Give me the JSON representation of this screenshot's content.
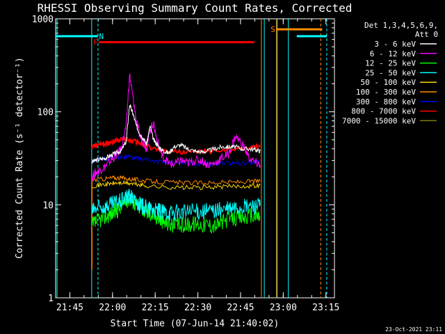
{
  "chart_data": {
    "type": "line",
    "title": "RHESSI Observing Summary Count Rates, Corrected",
    "xlabel": "Start Time (07-Jun-14 21:40:02)",
    "ylabel": "Corrected Count Rate (s⁻¹ detector⁻¹)",
    "yscale": "log",
    "ylim": [
      1,
      1000
    ],
    "xlim_minutes": [
      21.6667,
      23.3
    ],
    "xlim_unit": "hours",
    "x_ticks": [
      {
        "h": 21.75,
        "label": "21:45"
      },
      {
        "h": 22.0,
        "label": "22:00"
      },
      {
        "h": 22.25,
        "label": "22:15"
      },
      {
        "h": 22.5,
        "label": "22:30"
      },
      {
        "h": 22.75,
        "label": "22:45"
      },
      {
        "h": 23.0,
        "label": "23:00"
      },
      {
        "h": 23.25,
        "label": "23:15"
      }
    ],
    "y_ticks": [
      {
        "v": 1,
        "label": "1"
      },
      {
        "v": 10,
        "label": "10"
      },
      {
        "v": 100,
        "label": "100"
      },
      {
        "v": 1000,
        "label": "1000"
      }
    ],
    "legend_header": [
      "Det 1,3,4,5,6,9,",
      "Att 0"
    ],
    "series": [
      {
        "name": "3 - 6 keV",
        "color": "#ffffff",
        "x": [
          21.88,
          21.9,
          21.93,
          21.96,
          21.99,
          22.02,
          22.05,
          22.08,
          22.1,
          22.12,
          22.14,
          22.16,
          22.18,
          22.2,
          22.22,
          22.24,
          22.26,
          22.28,
          22.3,
          22.33,
          22.36,
          22.4,
          22.44,
          22.48,
          22.52,
          22.56,
          22.6,
          22.64,
          22.68,
          22.72,
          22.76,
          22.8,
          22.84,
          22.865
        ],
        "y": [
          29,
          30,
          31,
          32,
          34,
          36,
          38,
          48,
          120,
          95,
          70,
          58,
          52,
          45,
          70,
          50,
          45,
          40,
          38,
          36,
          42,
          44,
          40,
          38,
          37,
          38,
          40,
          42,
          42,
          42,
          40,
          40,
          39,
          38
        ]
      },
      {
        "name": "6 - 12 keV",
        "color": "#ff00ff",
        "x": [
          21.88,
          21.9,
          21.93,
          21.96,
          21.99,
          22.02,
          22.05,
          22.08,
          22.1,
          22.12,
          22.14,
          22.16,
          22.18,
          22.2,
          22.22,
          22.24,
          22.26,
          22.28,
          22.3,
          22.33,
          22.36,
          22.4,
          22.44,
          22.48,
          22.52,
          22.56,
          22.6,
          22.64,
          22.68,
          22.72,
          22.76,
          22.8,
          22.84,
          22.865
        ],
        "y": [
          20,
          22,
          24,
          26,
          30,
          34,
          40,
          70,
          250,
          140,
          80,
          55,
          48,
          40,
          65,
          75,
          50,
          38,
          32,
          28,
          27,
          30,
          28,
          30,
          30,
          27,
          28,
          32,
          35,
          55,
          45,
          32,
          28,
          27
        ]
      },
      {
        "name": "12 - 25 keV",
        "color": "#00ff00",
        "x": [
          21.88,
          21.9,
          21.93,
          21.96,
          21.99,
          22.02,
          22.05,
          22.08,
          22.1,
          22.12,
          22.14,
          22.16,
          22.18,
          22.2,
          22.22,
          22.24,
          22.26,
          22.28,
          22.3,
          22.33,
          22.36,
          22.4,
          22.44,
          22.48,
          22.52,
          22.56,
          22.6,
          22.64,
          22.68,
          22.72,
          22.76,
          22.8,
          22.84,
          22.865
        ],
        "y": [
          6,
          6.5,
          7,
          7.5,
          8,
          8.5,
          9.5,
          11,
          12,
          11,
          10,
          9.5,
          9,
          8.5,
          8,
          7.8,
          7.5,
          7,
          6.5,
          6.3,
          6,
          6,
          6.2,
          6.3,
          6.2,
          6.1,
          6,
          6.5,
          7,
          7.2,
          7.3,
          7.5,
          7.6,
          7.5
        ]
      },
      {
        "name": "25 - 50 keV",
        "color": "#00ffff",
        "x": [
          21.88,
          21.9,
          21.93,
          21.96,
          21.99,
          22.02,
          22.05,
          22.08,
          22.1,
          22.12,
          22.14,
          22.16,
          22.18,
          22.2,
          22.22,
          22.24,
          22.26,
          22.28,
          22.3,
          22.33,
          22.36,
          22.4,
          22.44,
          22.48,
          22.52,
          22.56,
          22.6,
          22.64,
          22.68,
          22.72,
          22.76,
          22.8,
          22.84,
          22.865
        ],
        "y": [
          8.5,
          9,
          9.3,
          9.6,
          10,
          10.5,
          11,
          12,
          12.5,
          11.5,
          10.5,
          10,
          9.6,
          9.3,
          9,
          8.8,
          8.6,
          8.5,
          8.4,
          8.3,
          8.3,
          8.3,
          8.4,
          8.5,
          8.5,
          8.6,
          8.7,
          8.9,
          9,
          9.2,
          9.4,
          9.6,
          9.8,
          9.9
        ]
      },
      {
        "name": "50 - 100 keV",
        "color": "#ffd700",
        "x": [
          21.88,
          21.95,
          22.0,
          22.05,
          22.1,
          22.15,
          22.2,
          22.3,
          22.4,
          22.5,
          22.6,
          22.7,
          22.8,
          22.865
        ],
        "y": [
          16,
          16.5,
          17,
          17.2,
          17,
          16.5,
          16,
          15.5,
          15.3,
          15.3,
          15.5,
          15.8,
          16,
          16.2
        ]
      },
      {
        "name": "100 - 300 keV",
        "color": "#ff8c00",
        "x": [
          21.88,
          21.95,
          22.0,
          22.05,
          22.1,
          22.15,
          22.2,
          22.3,
          22.4,
          22.5,
          22.6,
          22.7,
          22.8,
          22.865
        ],
        "y": [
          18.5,
          19,
          19.5,
          19.5,
          19,
          18.5,
          18,
          17.5,
          17.3,
          17.2,
          17.3,
          17.5,
          17.8,
          18
        ]
      },
      {
        "name": "300 - 800 keV",
        "color": "#0000ff",
        "x": [
          21.88,
          21.95,
          22.0,
          22.05,
          22.1,
          22.15,
          22.2,
          22.3,
          22.4,
          22.5,
          22.6,
          22.7,
          22.8,
          22.865
        ],
        "y": [
          30,
          31,
          32,
          33,
          32.5,
          31.5,
          30.5,
          29,
          28,
          27.5,
          27.5,
          27.8,
          28.5,
          29
        ]
      },
      {
        "name": "800 - 7000 keV",
        "color": "#ff0000",
        "x": [
          21.88,
          21.92,
          21.96,
          22.0,
          22.04,
          22.08,
          22.12,
          22.16,
          22.2,
          22.3,
          22.4,
          22.5,
          22.6,
          22.7,
          22.8,
          22.865
        ],
        "y": [
          42,
          44,
          46,
          48,
          50,
          51,
          49,
          46,
          42,
          38,
          37,
          37,
          38,
          39,
          41,
          42
        ]
      },
      {
        "name": "7000 - 15000 keV",
        "color": "#808000",
        "x": [],
        "y": []
      }
    ],
    "annotations": {
      "flags": [
        {
          "label": "N",
          "color": "#00ffff",
          "segments": [
            [
              21.667,
              21.914
            ],
            [
              23.079,
              23.255
            ]
          ],
          "level": 650,
          "labels_at": 21.935
        },
        {
          "label": "F",
          "color": "#ff0000",
          "segments": [
            [
              21.92,
              22.83
            ]
          ],
          "level": 560,
          "labels_at": 21.9
        },
        {
          "label": "S",
          "color": "#ff8c00",
          "segments": [
            [
              22.96,
              23.228
            ]
          ],
          "level": 770,
          "labels_at": 22.94
        }
      ],
      "vlines": [
        {
          "h": 21.675,
          "color": "#00ffff",
          "dash": false
        },
        {
          "h": 21.878,
          "color": "#00ffff",
          "dash": false
        },
        {
          "h": 21.915,
          "color": "#00ffff",
          "dash": true
        },
        {
          "h": 22.872,
          "color": "#ff8c00",
          "dash": false
        },
        {
          "h": 22.889,
          "color": "#00ffff",
          "dash": false
        },
        {
          "h": 22.96,
          "color": "#ff8c00",
          "dash": false
        },
        {
          "h": 22.965,
          "color": "#00ffff",
          "dash": false
        },
        {
          "h": 23.03,
          "color": "#00ffff",
          "dash": false
        },
        {
          "h": 23.22,
          "color": "#ff8c00",
          "dash": true
        },
        {
          "h": 23.255,
          "color": "#00ffff",
          "dash": true
        }
      ]
    }
  },
  "footer": {
    "timestamp": "23-Oct-2021 23:11"
  }
}
